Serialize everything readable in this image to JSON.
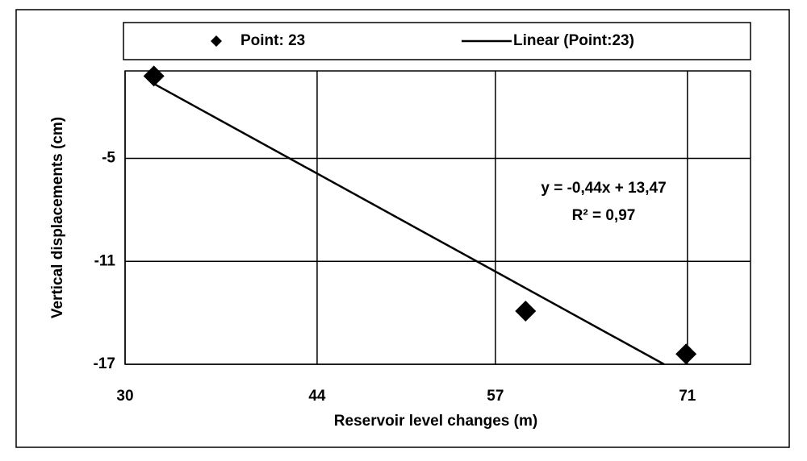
{
  "chart_data": {
    "type": "scatter",
    "x_label": "Reservoir level changes (m)",
    "y_label": "Vertical displacements (cm)",
    "series": [
      {
        "name": "Point: 23",
        "color": "#000000",
        "x": [
          32.1,
          59.2,
          70.9
        ],
        "values": [
          -0.2,
          -13.9,
          -16.4
        ]
      }
    ],
    "trendline": {
      "name": "Linear (Point:23)",
      "color": "#000000",
      "x": [
        32.1,
        69.3
      ],
      "values": [
        -0.65,
        -17
      ]
    },
    "annotations": [
      "y = -0,44x + 13,47",
      "R² = 0,97"
    ],
    "xlim": [
      30,
      75.6
    ],
    "xticks": [
      30,
      44,
      57,
      71
    ],
    "ylim": [
      -17,
      0.1
    ],
    "yticks": [
      -5,
      -11,
      -17
    ],
    "grid": true,
    "legend": "top"
  }
}
